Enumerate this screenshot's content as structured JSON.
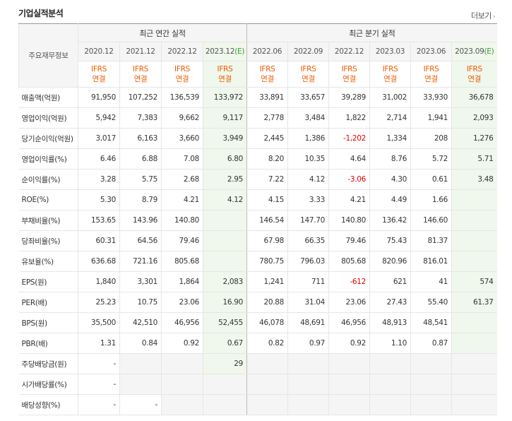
{
  "header": {
    "title": "기업실적분석",
    "more_label": "더보기",
    "more_icon": "chevron-right-icon"
  },
  "table": {
    "row_header_label": "주요재무정보",
    "groups": {
      "annual": "최근 연간 실적",
      "quarterly": "최근 분기 실적"
    },
    "periods": [
      "2020.12",
      "2021.12",
      "2022.12",
      "2023.12",
      "2022.06",
      "2022.09",
      "2022.12",
      "2023.03",
      "2023.06",
      "2023.09"
    ],
    "estimate_flags": [
      false,
      false,
      false,
      true,
      false,
      false,
      false,
      false,
      false,
      true
    ],
    "estimate_mark": "(E)",
    "ifrs_line1": "IFRS",
    "ifrs_line2": "연결",
    "rows": [
      {
        "label": "매출액(억원)",
        "values": [
          "91,950",
          "107,252",
          "136,539",
          "133,972",
          "33,891",
          "33,657",
          "39,289",
          "31,002",
          "33,930",
          "36,678"
        ]
      },
      {
        "label": "영업이익(억원)",
        "values": [
          "5,942",
          "7,383",
          "9,662",
          "9,117",
          "2,778",
          "3,484",
          "1,822",
          "2,714",
          "1,941",
          "2,093"
        ]
      },
      {
        "label": "당기순이익(억원)",
        "values": [
          "3,017",
          "6,163",
          "3,660",
          "3,949",
          "2,445",
          "1,386",
          "-1,202",
          "1,334",
          "208",
          "1,276"
        ]
      },
      {
        "label": "영업이익률(%)",
        "values": [
          "6.46",
          "6.88",
          "7.08",
          "6.80",
          "8.20",
          "10.35",
          "4.64",
          "8.76",
          "5.72",
          "5.71"
        ]
      },
      {
        "label": "순이익률(%)",
        "values": [
          "3.28",
          "5.75",
          "2.68",
          "2.95",
          "7.22",
          "4.12",
          "-3.06",
          "4.30",
          "0.61",
          "3.48"
        ]
      },
      {
        "label": "ROE(%)",
        "values": [
          "5.30",
          "8.79",
          "4.21",
          "4.12",
          "4.15",
          "3.33",
          "4.21",
          "4.49",
          "1.66",
          ""
        ]
      },
      {
        "label": "부채비율(%)",
        "values": [
          "153.65",
          "143.96",
          "140.80",
          "",
          "146.54",
          "147.70",
          "140.80",
          "136.42",
          "146.60",
          ""
        ]
      },
      {
        "label": "당좌비율(%)",
        "values": [
          "60.31",
          "64.56",
          "79.46",
          "",
          "67.98",
          "66.35",
          "79.46",
          "75.43",
          "81.37",
          ""
        ]
      },
      {
        "label": "유보율(%)",
        "values": [
          "636.68",
          "721.16",
          "805.68",
          "",
          "780.75",
          "796.03",
          "805.68",
          "820.96",
          "816.01",
          ""
        ]
      },
      {
        "label": "EPS(원)",
        "values": [
          "1,840",
          "3,301",
          "1,864",
          "2,083",
          "1,241",
          "711",
          "-612",
          "621",
          "41",
          "574"
        ]
      },
      {
        "label": "PER(배)",
        "values": [
          "25.23",
          "10.75",
          "23.06",
          "16.90",
          "20.88",
          "31.04",
          "23.06",
          "27.43",
          "55.40",
          "61.37"
        ]
      },
      {
        "label": "BPS(원)",
        "values": [
          "35,500",
          "42,510",
          "46,956",
          "52,455",
          "46,078",
          "48,691",
          "46,956",
          "48,913",
          "48,541",
          ""
        ]
      },
      {
        "label": "PBR(배)",
        "values": [
          "1.31",
          "0.84",
          "0.92",
          "0.67",
          "0.82",
          "0.97",
          "0.92",
          "1.10",
          "0.87",
          ""
        ]
      },
      {
        "label": "주당배당금(원)",
        "values": [
          "-",
          "",
          "",
          "29",
          "",
          "",
          "",
          "",
          "",
          ""
        ]
      },
      {
        "label": "시가배당률(%)",
        "values": [
          "-",
          "",
          "",
          "",
          "",
          "",
          "",
          "",
          "",
          ""
        ]
      },
      {
        "label": "배당성향(%)",
        "values": [
          "-",
          "-",
          "",
          "",
          "",
          "",
          "",
          "",
          "",
          ""
        ]
      }
    ]
  }
}
